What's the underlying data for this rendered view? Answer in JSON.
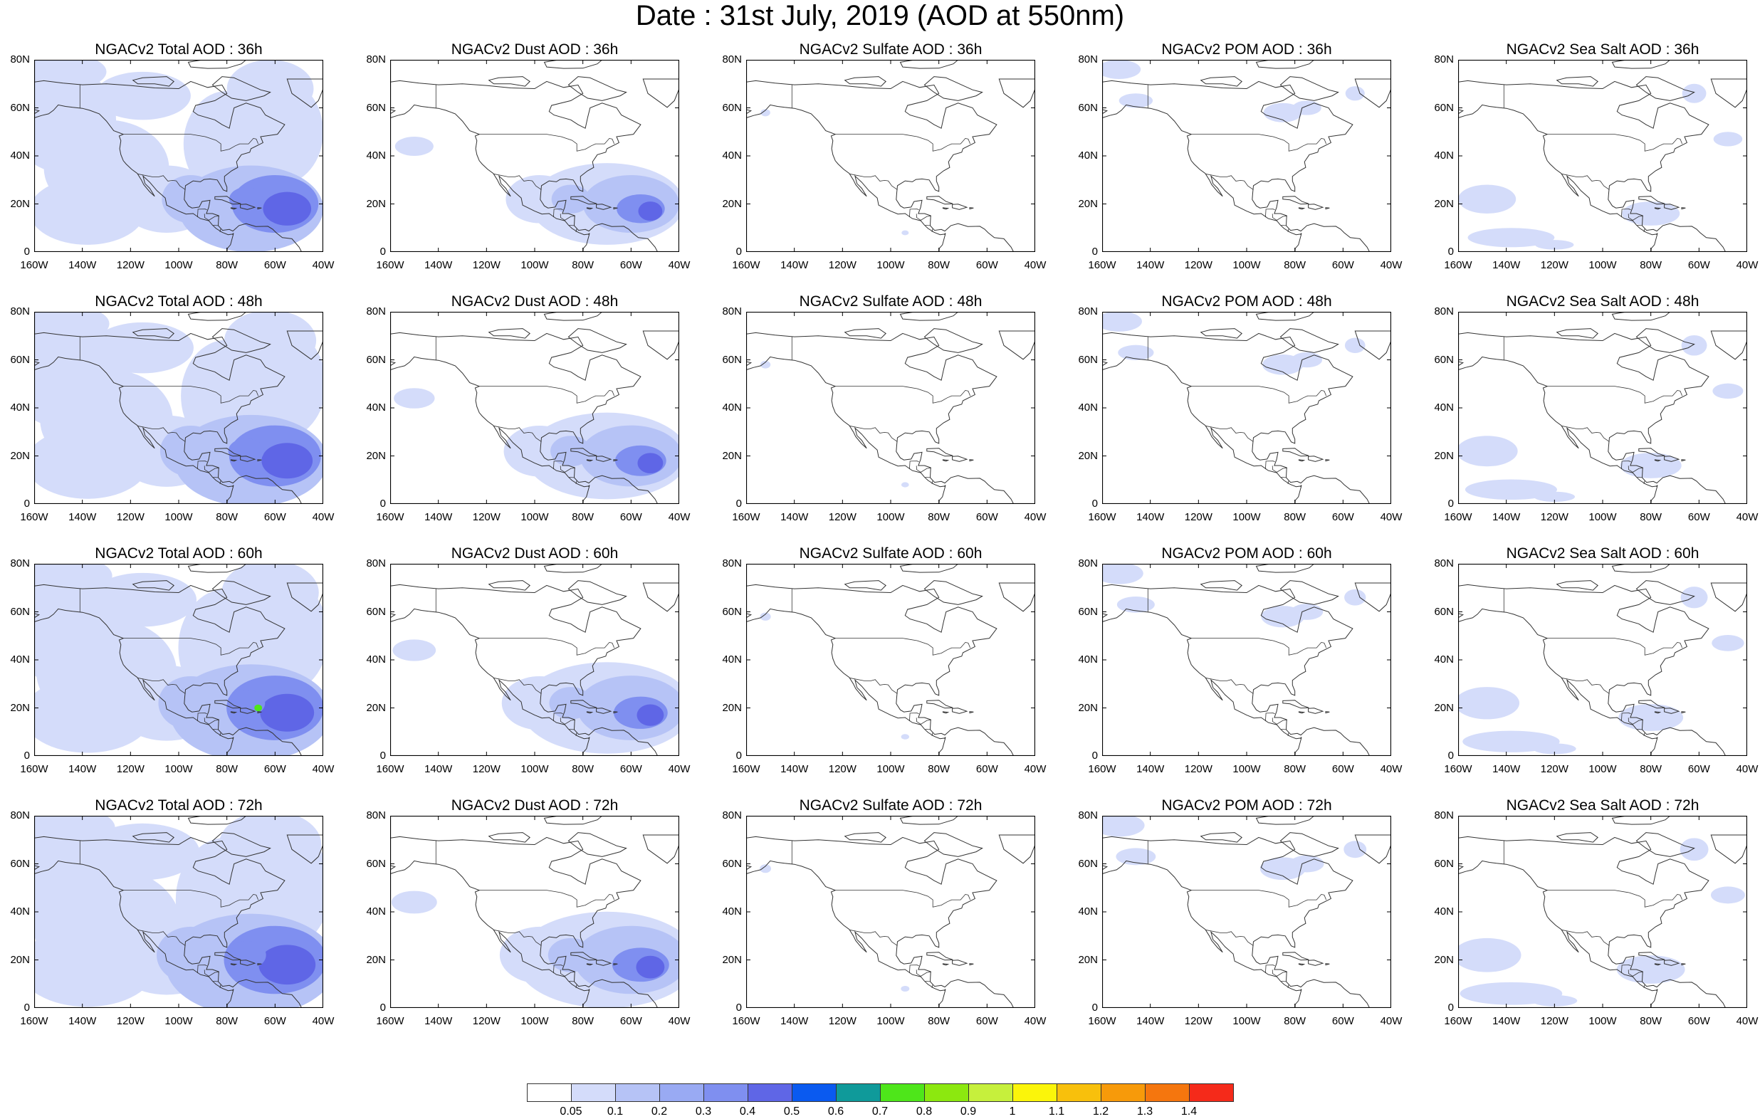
{
  "figure_title": "Date : 31st July, 2019 (AOD at 550nm)",
  "rows": [
    [
      "NGACv2 Total AOD : 36h",
      "NGACv2 Dust AOD : 36h",
      "NGACv2 Sulfate AOD : 36h",
      "NGACv2 POM AOD : 36h",
      "NGACv2 Sea Salt AOD : 36h"
    ],
    [
      "NGACv2 Total AOD : 48h",
      "NGACv2 Dust AOD : 48h",
      "NGACv2 Sulfate AOD : 48h",
      "NGACv2 POM AOD : 48h",
      "NGACv2 Sea Salt AOD : 48h"
    ],
    [
      "NGACv2 Total AOD : 60h",
      "NGACv2 Dust AOD : 60h",
      "NGACv2 Sulfate AOD : 60h",
      "NGACv2 POM AOD : 60h",
      "NGACv2 Sea Salt AOD : 60h"
    ],
    [
      "NGACv2 Total AOD : 72h",
      "NGACv2 Dust AOD : 72h",
      "NGACv2 Sulfate AOD : 72h",
      "NGACv2 POM AOD : 72h",
      "NGACv2 Sea Salt  AOD : 72h"
    ]
  ],
  "lat_labels": [
    "80N",
    "60N",
    "40N",
    "20N",
    "0"
  ],
  "lon_labels": [
    "160W",
    "140W",
    "120W",
    "100W",
    "80W",
    "60W",
    "40W"
  ],
  "colorbar": {
    "labels": [
      "0.05",
      "0.1",
      "0.2",
      "0.3",
      "0.4",
      "0.5",
      "0.6",
      "0.7",
      "0.8",
      "0.9",
      "1",
      "1.1",
      "1.2",
      "1.3",
      "1.4"
    ],
    "colors": [
      "#ffffff",
      "#d4dcfa",
      "#b6c3f6",
      "#99aaf3",
      "#7f8ff0",
      "#5f66e6",
      "#0a5af0",
      "#0f9a9a",
      "#4ee61a",
      "#8ce80f",
      "#c6f03c",
      "#fbf50a",
      "#f8c00c",
      "#f79a0a",
      "#f5760e",
      "#f52a1a"
    ]
  },
  "colors": {
    "plume_light": "#d4dcfa",
    "plume_mid": "#b6c3f6",
    "plume_strong": "#7f8ff0",
    "plume_core": "#5f66e6",
    "plume_peak": "#0a5af0",
    "green_spot": "#4ee61a",
    "coastline": "#333333"
  }
}
